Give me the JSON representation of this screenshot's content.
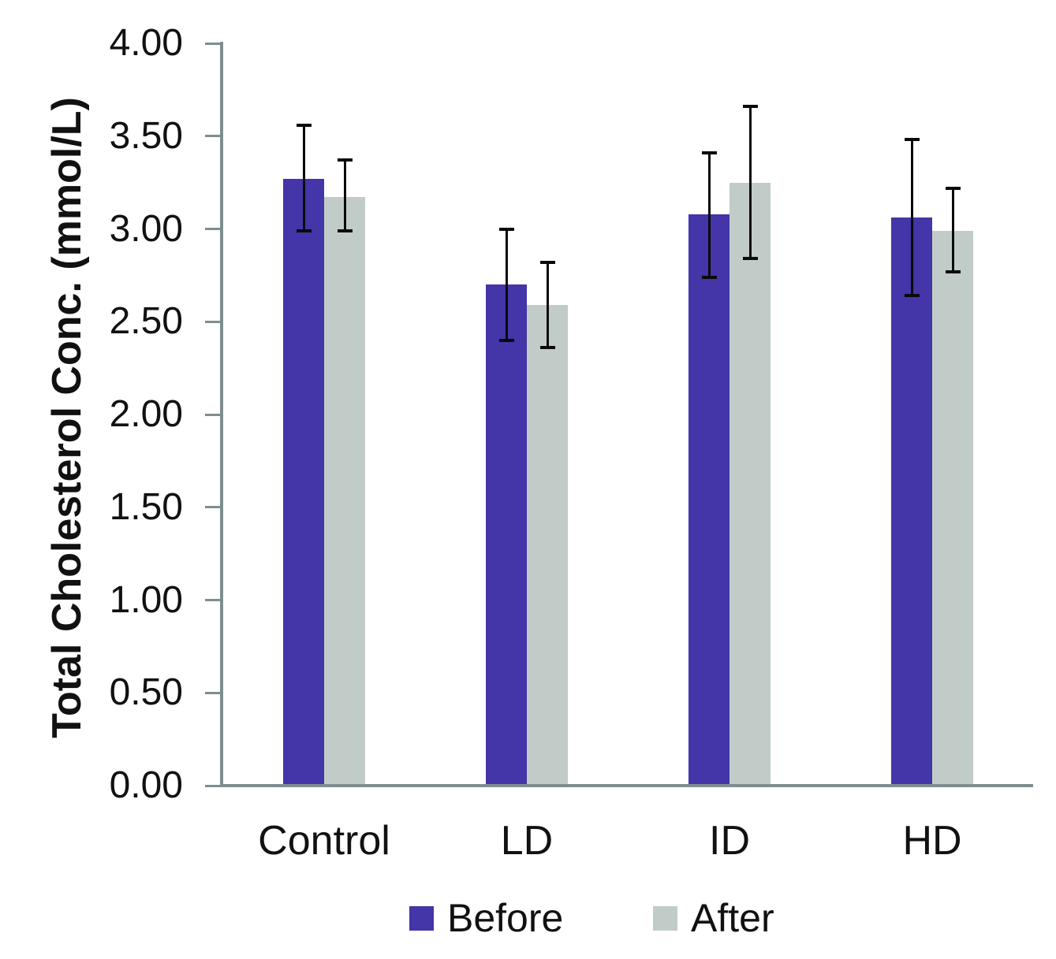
{
  "chart_data": {
    "type": "bar",
    "title": "",
    "xlabel": "",
    "ylabel": "Total Cholesterol Conc. (mmol/L)",
    "categories": [
      "Control",
      "LD",
      "ID",
      "HD"
    ],
    "series": [
      {
        "name": "Before",
        "color": "#4435A8",
        "values": [
          3.27,
          2.7,
          3.08,
          3.06
        ],
        "error_top": [
          3.56,
          3.0,
          3.41,
          3.48
        ],
        "error_bottom": [
          2.99,
          2.4,
          2.74,
          2.64
        ]
      },
      {
        "name": "After",
        "color": "#C1CCC9",
        "values": [
          3.17,
          2.59,
          3.25,
          2.99
        ],
        "error_top": [
          3.37,
          2.82,
          3.66,
          3.22
        ],
        "error_bottom": [
          2.99,
          2.36,
          2.84,
          2.77
        ]
      }
    ],
    "ylim": [
      0.0,
      4.0
    ],
    "ytick_step": 0.5,
    "ytick_labels": [
      "0.00",
      "0.50",
      "1.00",
      "1.50",
      "2.00",
      "2.50",
      "3.00",
      "3.50",
      "4.00"
    ],
    "grid": false,
    "legend_position": "bottom",
    "axis_color": "#7E8E8E",
    "error_bar_color": "#0A0A0A",
    "text_color": "#111111"
  }
}
